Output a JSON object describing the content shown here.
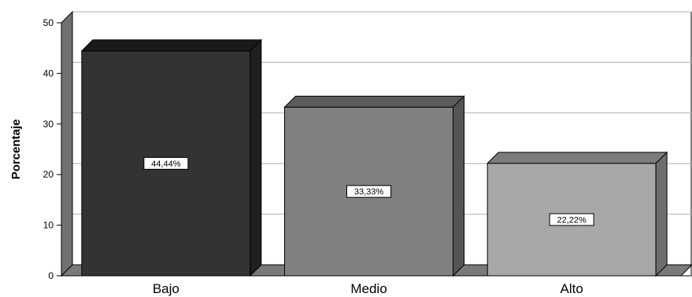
{
  "chart_data": {
    "type": "bar",
    "categories": [
      "Bajo",
      "Medio",
      "Alto"
    ],
    "values": [
      44.44,
      33.33,
      22.22
    ],
    "data_labels": [
      "44,44%",
      "33,33%",
      "22,22%"
    ],
    "ylabel": "Porcentaje",
    "xlabel": "",
    "ylim": [
      0,
      50
    ],
    "yticks": [
      0,
      10,
      20,
      30,
      40,
      50
    ],
    "grid": true,
    "style": "3d",
    "colors": {
      "bars": [
        "#333333",
        "#808080",
        "#a8a8a8"
      ],
      "bar_tops": [
        "#1a1a1a",
        "#5c5c5c",
        "#7c7c7c"
      ],
      "bar_sides": [
        "#1f1f1f",
        "#555555",
        "#6e6e6e"
      ],
      "grid": "#b0b0b0",
      "floor": "#7a7a7a",
      "wall": "#707070"
    }
  }
}
